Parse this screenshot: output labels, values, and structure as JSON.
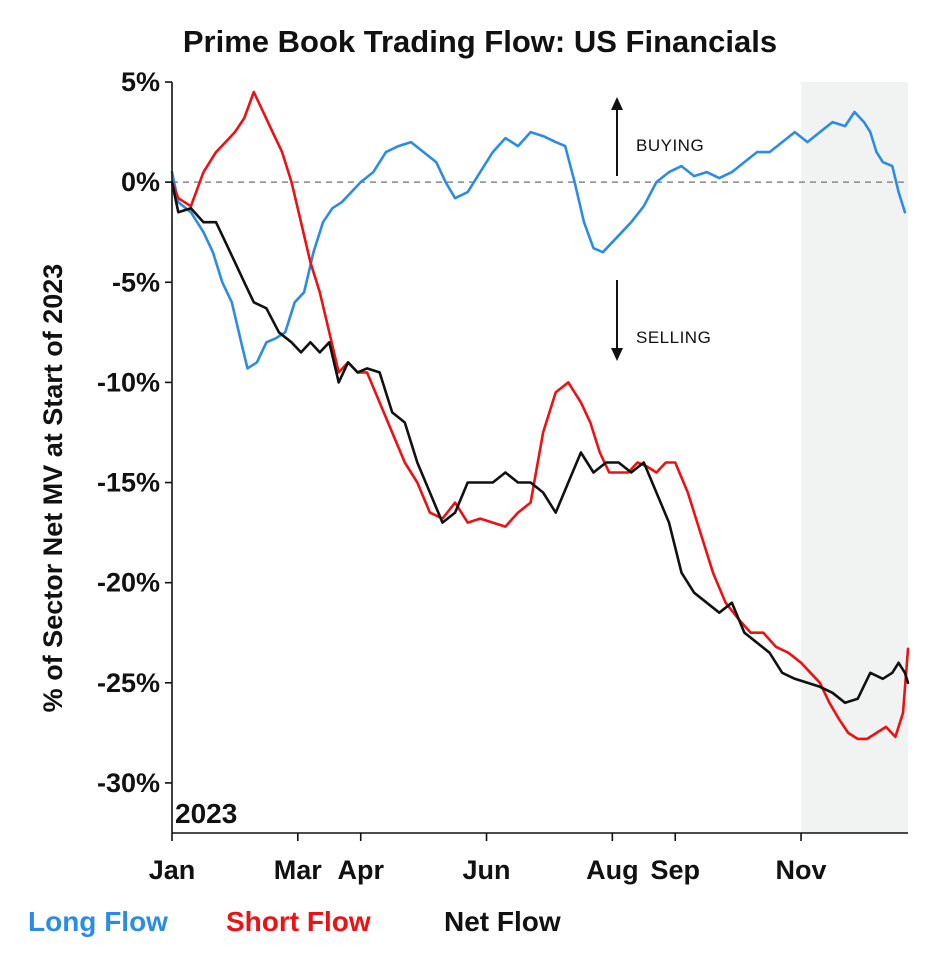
{
  "chart_data": {
    "type": "line",
    "title": "Prime Book Trading Flow: US Financials",
    "ylabel": "% of Sector Net MV at Start of 2023",
    "xlabel": "",
    "corner_label": "2023",
    "ylim": [
      -32.5,
      5
    ],
    "yticks": [
      5,
      0,
      -5,
      -10,
      -15,
      -20,
      -25,
      -30
    ],
    "ytick_labels": [
      "5%",
      "0%",
      "-5%",
      "-10%",
      "-15%",
      "-20%",
      "-25%",
      "-30%"
    ],
    "x_unit": "month of 2023",
    "xlim": [
      1,
      12.7
    ],
    "xticks": [
      1,
      3,
      4,
      6,
      8,
      9,
      11
    ],
    "xtick_labels": [
      "Jan",
      "Mar",
      "Apr",
      "Jun",
      "Aug",
      "Sep",
      "Nov"
    ],
    "grid": false,
    "zero_line": "dashed",
    "shaded_region": [
      11,
      12.7
    ],
    "annotations": [
      {
        "text": "BUYING",
        "direction": "up"
      },
      {
        "text": "SELLING",
        "direction": "down"
      }
    ],
    "legend_position": "bottom",
    "series": [
      {
        "name": "Long Flow",
        "color": "#2b8ce8",
        "x": [
          1.0,
          1.1,
          1.3,
          1.5,
          1.65,
          1.8,
          1.95,
          2.1,
          2.2,
          2.35,
          2.5,
          2.65,
          2.8,
          2.95,
          3.1,
          3.25,
          3.4,
          3.55,
          3.7,
          3.85,
          4.0,
          4.2,
          4.4,
          4.6,
          4.8,
          5.0,
          5.2,
          5.35,
          5.5,
          5.7,
          5.9,
          6.1,
          6.3,
          6.5,
          6.7,
          6.9,
          7.1,
          7.25,
          7.4,
          7.55,
          7.7,
          7.85,
          8.0,
          8.15,
          8.3,
          8.5,
          8.7,
          8.9,
          9.1,
          9.3,
          9.5,
          9.7,
          9.9,
          10.1,
          10.3,
          10.5,
          10.7,
          10.9,
          11.1,
          11.3,
          11.5,
          11.7,
          11.85,
          12.0,
          12.1,
          12.2,
          12.3,
          12.45,
          12.55,
          12.65
        ],
        "values": [
          0.5,
          -1.0,
          -1.5,
          -2.5,
          -3.5,
          -5.0,
          -6.0,
          -8.0,
          -9.3,
          -9.0,
          -8.0,
          -7.8,
          -7.5,
          -6.0,
          -5.5,
          -3.5,
          -2.0,
          -1.3,
          -1.0,
          -0.5,
          0.0,
          0.5,
          1.5,
          1.8,
          2.0,
          1.5,
          1.0,
          0.0,
          -0.8,
          -0.5,
          0.5,
          1.5,
          2.2,
          1.8,
          2.5,
          2.3,
          2.0,
          1.8,
          0.0,
          -2.0,
          -3.3,
          -3.5,
          -3.0,
          -2.5,
          -2.0,
          -1.2,
          0.0,
          0.5,
          0.8,
          0.3,
          0.5,
          0.2,
          0.5,
          1.0,
          1.5,
          1.5,
          2.0,
          2.5,
          2.0,
          2.5,
          3.0,
          2.8,
          3.5,
          3.0,
          2.5,
          1.5,
          1.0,
          0.8,
          -0.5,
          -1.5
        ]
      },
      {
        "name": "Short Flow",
        "color": "#ee1111",
        "x": [
          1.0,
          1.1,
          1.3,
          1.5,
          1.7,
          1.85,
          2.0,
          2.15,
          2.3,
          2.45,
          2.6,
          2.75,
          2.9,
          3.05,
          3.2,
          3.35,
          3.5,
          3.65,
          3.8,
          3.95,
          4.1,
          4.3,
          4.5,
          4.7,
          4.9,
          5.1,
          5.3,
          5.5,
          5.7,
          5.9,
          6.1,
          6.3,
          6.5,
          6.7,
          6.9,
          7.1,
          7.3,
          7.5,
          7.65,
          7.8,
          7.95,
          8.1,
          8.25,
          8.4,
          8.55,
          8.7,
          8.85,
          9.0,
          9.2,
          9.4,
          9.6,
          9.8,
          10.0,
          10.2,
          10.4,
          10.6,
          10.8,
          11.0,
          11.15,
          11.3,
          11.45,
          11.6,
          11.75,
          11.9,
          12.05,
          12.2,
          12.35,
          12.5,
          12.62,
          12.7
        ],
        "values": [
          0.0,
          -0.8,
          -1.2,
          0.5,
          1.5,
          2.0,
          2.5,
          3.2,
          4.5,
          3.5,
          2.5,
          1.5,
          0.0,
          -2.0,
          -4.0,
          -5.5,
          -7.5,
          -9.5,
          -9.0,
          -9.5,
          -9.5,
          -11.0,
          -12.5,
          -14.0,
          -15.0,
          -16.5,
          -16.8,
          -16.0,
          -17.0,
          -16.8,
          -17.0,
          -17.2,
          -16.5,
          -16.0,
          -12.5,
          -10.5,
          -10.0,
          -11.0,
          -12.0,
          -13.5,
          -14.5,
          -14.5,
          -14.5,
          -14.0,
          -14.2,
          -14.5,
          -14.0,
          -14.0,
          -15.5,
          -17.5,
          -19.5,
          -21.0,
          -21.8,
          -22.5,
          -22.5,
          -23.2,
          -23.5,
          -24.0,
          -24.5,
          -25.0,
          -26.0,
          -26.8,
          -27.5,
          -27.8,
          -27.8,
          -27.5,
          -27.2,
          -27.7,
          -26.5,
          -23.3
        ]
      },
      {
        "name": "Net Flow",
        "color": "#111111",
        "x": [
          1.0,
          1.1,
          1.3,
          1.5,
          1.7,
          1.85,
          2.0,
          2.15,
          2.3,
          2.5,
          2.7,
          2.9,
          3.05,
          3.2,
          3.35,
          3.5,
          3.65,
          3.8,
          3.95,
          4.1,
          4.3,
          4.5,
          4.7,
          4.9,
          5.1,
          5.3,
          5.5,
          5.7,
          5.9,
          6.1,
          6.3,
          6.5,
          6.7,
          6.9,
          7.1,
          7.3,
          7.5,
          7.7,
          7.9,
          8.1,
          8.3,
          8.5,
          8.7,
          8.9,
          9.1,
          9.3,
          9.5,
          9.7,
          9.9,
          10.1,
          10.3,
          10.5,
          10.7,
          10.9,
          11.1,
          11.3,
          11.5,
          11.7,
          11.9,
          12.1,
          12.3,
          12.45,
          12.55,
          12.65,
          12.7
        ],
        "values": [
          0.0,
          -1.5,
          -1.3,
          -2.0,
          -2.0,
          -3.0,
          -4.0,
          -5.0,
          -6.0,
          -6.3,
          -7.5,
          -8.0,
          -8.5,
          -8.0,
          -8.5,
          -8.0,
          -10.0,
          -9.0,
          -9.5,
          -9.3,
          -9.5,
          -11.5,
          -12.0,
          -14.0,
          -15.5,
          -17.0,
          -16.5,
          -15.0,
          -15.0,
          -15.0,
          -14.5,
          -15.0,
          -15.0,
          -15.5,
          -16.5,
          -15.0,
          -13.5,
          -14.5,
          -14.0,
          -14.0,
          -14.5,
          -14.0,
          -15.5,
          -17.0,
          -19.5,
          -20.5,
          -21.0,
          -21.5,
          -21.0,
          -22.5,
          -23.0,
          -23.5,
          -24.5,
          -24.8,
          -25.0,
          -25.2,
          -25.5,
          -26.0,
          -25.8,
          -24.5,
          -24.8,
          -24.5,
          -24.0,
          -24.5,
          -25.0
        ]
      }
    ]
  }
}
